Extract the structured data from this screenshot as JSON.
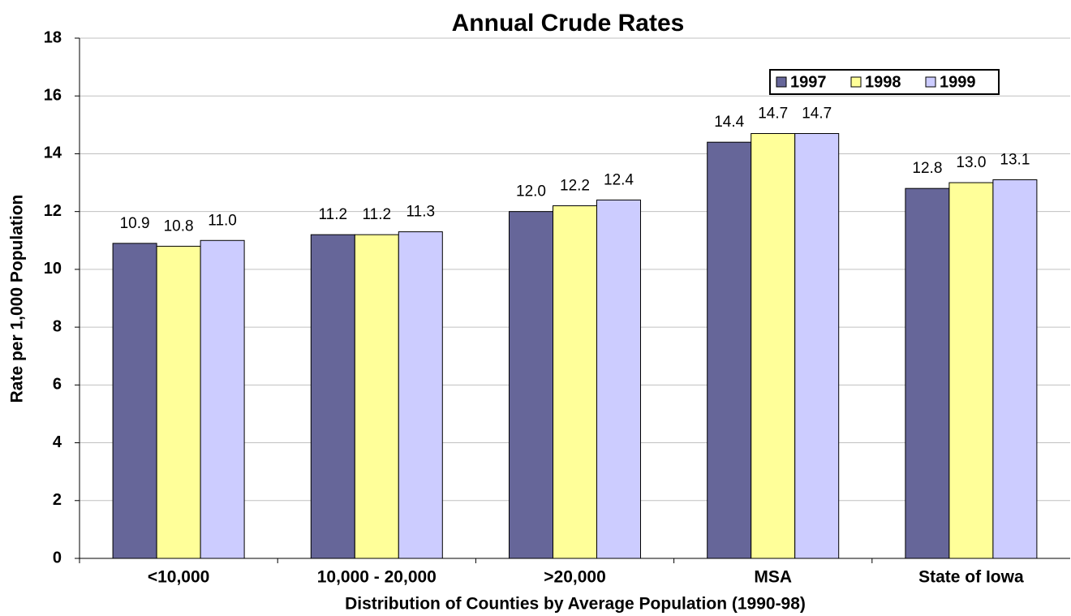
{
  "chart_data": {
    "type": "bar",
    "title": "Annual Crude Rates",
    "x_label": "Distribution of Counties by Average Population (1990-98)",
    "y_label": "Rate per 1,000 Population",
    "categories": [
      "<10,000",
      "10,000 - 20,000",
      ">20,000",
      "MSA",
      "State of Iowa"
    ],
    "series": [
      {
        "name": "1997",
        "color": "#666699",
        "values": [
          10.9,
          11.2,
          12.0,
          14.4,
          12.8
        ],
        "value_labels": [
          "10.9",
          "11.2",
          "12.0",
          "14.4",
          "12.8"
        ]
      },
      {
        "name": "1998",
        "color": "#ffff99",
        "values": [
          10.8,
          11.2,
          12.2,
          14.7,
          13.0
        ],
        "value_labels": [
          "10.8",
          "11.2",
          "12.2",
          "14.7",
          "13.0"
        ]
      },
      {
        "name": "1999",
        "color": "#ccccff",
        "values": [
          11.0,
          11.3,
          12.4,
          14.7,
          13.1
        ],
        "value_labels": [
          "11.0",
          "11.3",
          "12.4",
          "14.7",
          "13.1"
        ]
      }
    ],
    "ylim": [
      0,
      18
    ],
    "yticks": [
      0,
      2,
      4,
      6,
      8,
      10,
      12,
      14,
      16,
      18
    ],
    "grid": true,
    "legend": "top-right"
  }
}
